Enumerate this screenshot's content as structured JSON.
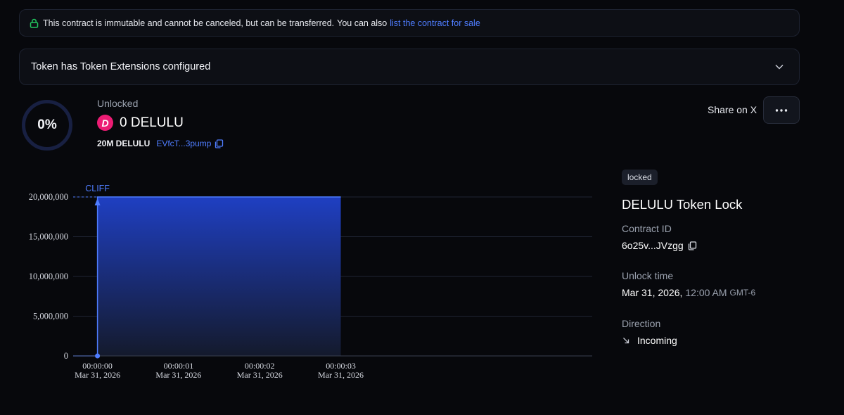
{
  "banner": {
    "text": "This contract is immutable and cannot be canceled, but can be transferred.",
    "also": "You can also",
    "link": "list the contract for sale"
  },
  "extensions": {
    "title": "Token has Token Extensions configured"
  },
  "progress": {
    "percent_label": "0%",
    "percent": 0
  },
  "summary": {
    "unlocked_label": "Unlocked",
    "amount": "0 DELULU",
    "logo_letter": "D",
    "total": "20M DELULU",
    "mint_short": "EVfcT...3pump"
  },
  "actions": {
    "share": "Share on X"
  },
  "details": {
    "status": "locked",
    "title": "DELULU Token Lock",
    "contract_label": "Contract ID",
    "contract_id": "6o25v...JVzgg",
    "unlock_label": "Unlock time",
    "unlock_date": "Mar 31, 2026,",
    "unlock_time": "12:00 AM",
    "unlock_tz": "GMT-6",
    "direction_label": "Direction",
    "direction": "Incoming"
  },
  "colors": {
    "accent": "#4f7dff",
    "brand": "#ec1c74",
    "area_top": "#1f3fc2",
    "area_bottom": "#141a2c"
  },
  "chart_data": {
    "type": "area",
    "x_ticks": [
      {
        "time": "00:00:00",
        "date": "Mar 31, 2026"
      },
      {
        "time": "00:00:01",
        "date": "Mar 31, 2026"
      },
      {
        "time": "00:00:02",
        "date": "Mar 31, 2026"
      },
      {
        "time": "00:00:03",
        "date": "Mar 31, 2026"
      }
    ],
    "y_ticks": [
      "0",
      "5,000,000",
      "10,000,000",
      "15,000,000",
      "20,000,000"
    ],
    "y_values": [
      0,
      5000000,
      10000000,
      15000000,
      20000000
    ],
    "ylim": [
      0,
      20000000
    ],
    "xlim": [
      -0.3,
      6.1
    ],
    "series": [
      {
        "x": [
          -0.3,
          0,
          0,
          3
        ],
        "y": [
          0,
          0,
          20000000,
          20000000
        ]
      }
    ],
    "annotation": {
      "label": "CLIFF",
      "x": 0
    },
    "grid": true
  }
}
